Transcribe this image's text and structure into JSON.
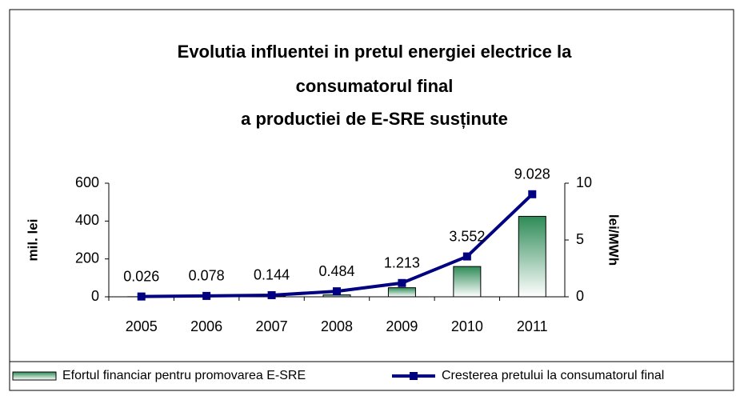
{
  "chart_data": {
    "type": "bar-line",
    "title": [
      "Evolutia influentei in pretul energiei electrice la",
      "consumatorul final",
      "a productiei de E-SRE susținute"
    ],
    "categories": [
      "2005",
      "2006",
      "2007",
      "2008",
      "2009",
      "2010",
      "2011"
    ],
    "ylabel": "mil. lei",
    "y2label": "lei/MWh",
    "ylim": [
      0,
      600
    ],
    "yticks": [
      0,
      200,
      400,
      600
    ],
    "y2lim": [
      0,
      10
    ],
    "y2ticks": [
      0,
      5,
      10
    ],
    "series": [
      {
        "name": "Efortul financiar pentru promovarea E-SRE",
        "type": "bar",
        "color": "#2e8b57",
        "values": [
          0.5,
          1.5,
          3,
          10,
          48,
          160,
          425
        ]
      },
      {
        "name": "Cresterea pretului la consumatorul final",
        "type": "line",
        "axis": "y2",
        "color": "#000080",
        "values": [
          0.026,
          0.078,
          0.144,
          0.484,
          1.213,
          3.552,
          9.028
        ]
      }
    ],
    "legend": "bottom"
  }
}
